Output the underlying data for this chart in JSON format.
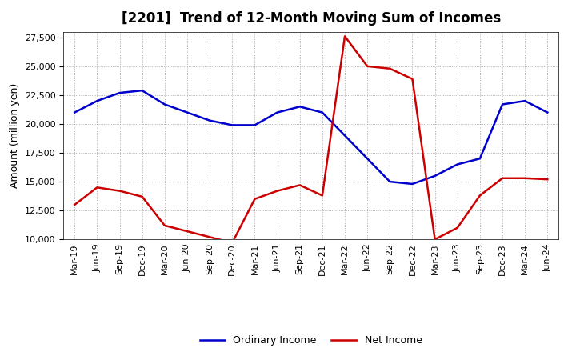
{
  "title": "[2201]  Trend of 12-Month Moving Sum of Incomes",
  "ylabel": "Amount (million yen)",
  "xlabels": [
    "Mar-19",
    "Jun-19",
    "Sep-19",
    "Dec-19",
    "Mar-20",
    "Jun-20",
    "Sep-20",
    "Dec-20",
    "Mar-21",
    "Jun-21",
    "Sep-21",
    "Dec-21",
    "Mar-22",
    "Jun-22",
    "Sep-22",
    "Dec-22",
    "Mar-23",
    "Jun-23",
    "Sep-23",
    "Dec-23",
    "Mar-24",
    "Jun-24"
  ],
  "ordinary_income": [
    21000,
    22000,
    22700,
    22900,
    21700,
    21000,
    20300,
    19900,
    19900,
    21000,
    21500,
    21000,
    19000,
    17000,
    15000,
    14800,
    15500,
    16500,
    17000,
    21700,
    22000,
    21000
  ],
  "net_income": [
    13000,
    14500,
    14200,
    13700,
    11200,
    10700,
    10200,
    9700,
    13500,
    14200,
    14700,
    13800,
    27600,
    25000,
    24800,
    23900,
    10000,
    11000,
    13800,
    15300,
    15300,
    15200
  ],
  "ordinary_color": "#0000cc",
  "net_color": "#cc0000",
  "ylim_min": 10000,
  "ylim_max": 28000,
  "yticks": [
    10000,
    12500,
    15000,
    17500,
    20000,
    22500,
    25000,
    27500
  ],
  "bg_color": "#ffffff",
  "grid_color": "#999999",
  "title_fontsize": 12,
  "axis_fontsize": 9,
  "tick_fontsize": 8,
  "legend_fontsize": 9,
  "linewidth": 1.8
}
